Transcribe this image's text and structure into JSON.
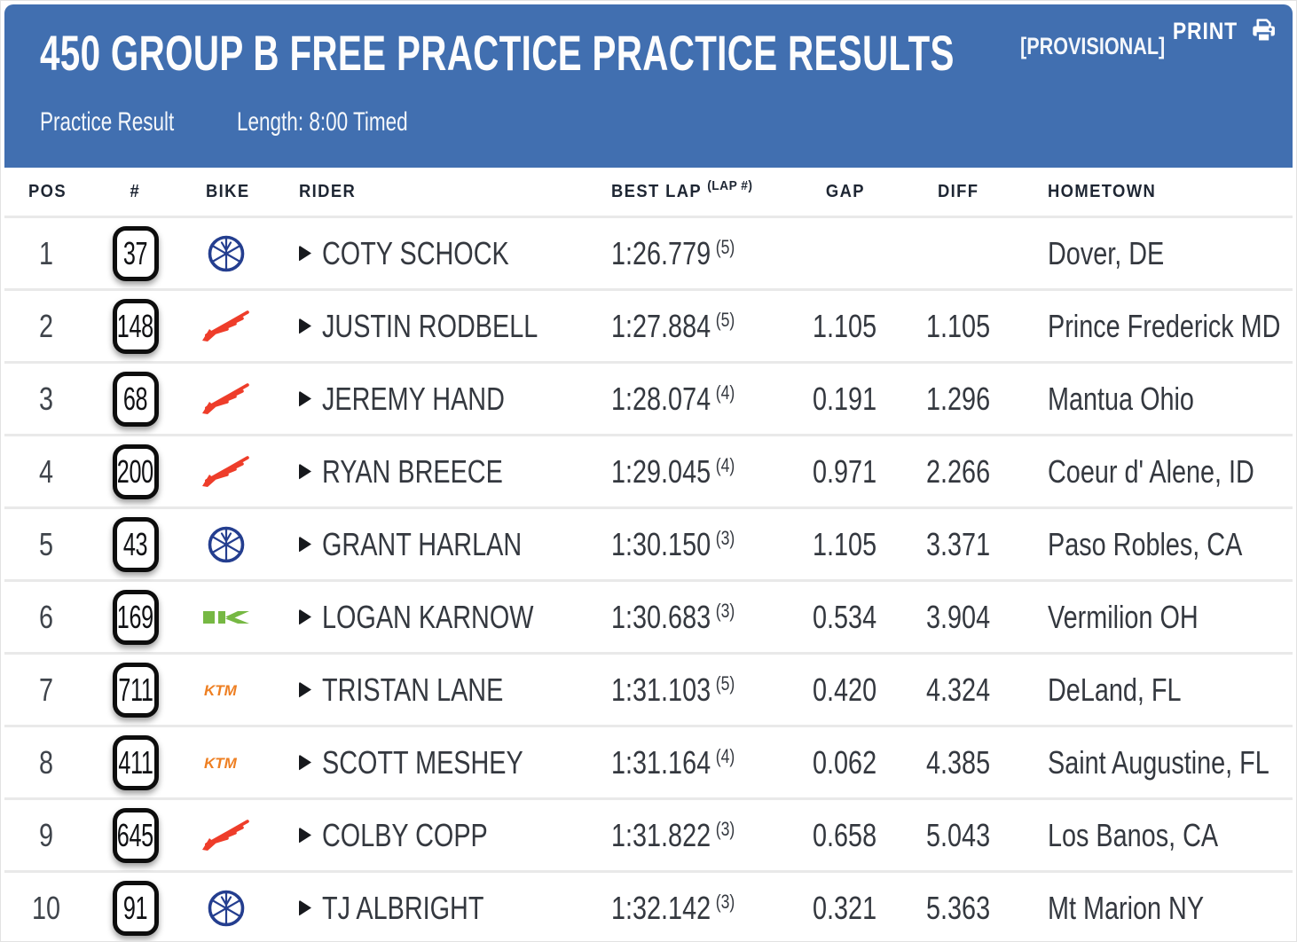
{
  "header": {
    "title": "450 GROUP B FREE PRACTICE PRACTICE RESULTS",
    "provisional": "[PROVISIONAL]",
    "print_label": "PRINT",
    "subtitle_left": "Practice Result",
    "subtitle_right": "Length: 8:00 Timed"
  },
  "table": {
    "columns": {
      "pos": "POS",
      "num": "#",
      "bike": "BIKE",
      "rider": "RIDER",
      "best_lap": "BEST LAP",
      "lap_note": "(LAP #)",
      "gap": "GAP",
      "diff": "DIFF",
      "hometown": "HOMETOWN"
    },
    "rows": [
      {
        "pos": "1",
        "num": "37",
        "bike": "yamaha",
        "rider": "COTY SCHOCK",
        "best_lap": "1:26.779",
        "lap_no": "(5)",
        "gap": "",
        "diff": "",
        "hometown": "Dover, DE"
      },
      {
        "pos": "2",
        "num": "148",
        "bike": "honda",
        "rider": "JUSTIN RODBELL",
        "best_lap": "1:27.884",
        "lap_no": "(5)",
        "gap": "1.105",
        "diff": "1.105",
        "hometown": "Prince Frederick MD"
      },
      {
        "pos": "3",
        "num": "68",
        "bike": "honda",
        "rider": "JEREMY HAND",
        "best_lap": "1:28.074",
        "lap_no": "(4)",
        "gap": "0.191",
        "diff": "1.296",
        "hometown": "Mantua Ohio"
      },
      {
        "pos": "4",
        "num": "200",
        "bike": "honda",
        "rider": "RYAN BREECE",
        "best_lap": "1:29.045",
        "lap_no": "(4)",
        "gap": "0.971",
        "diff": "2.266",
        "hometown": "Coeur d' Alene, ID"
      },
      {
        "pos": "5",
        "num": "43",
        "bike": "yamaha",
        "rider": "GRANT HARLAN",
        "best_lap": "1:30.150",
        "lap_no": "(3)",
        "gap": "1.105",
        "diff": "3.371",
        "hometown": "Paso Robles, CA"
      },
      {
        "pos": "6",
        "num": "169",
        "bike": "kawasaki",
        "rider": "LOGAN KARNOW",
        "best_lap": "1:30.683",
        "lap_no": "(3)",
        "gap": "0.534",
        "diff": "3.904",
        "hometown": "Vermilion OH"
      },
      {
        "pos": "7",
        "num": "711",
        "bike": "ktm",
        "rider": "TRISTAN LANE",
        "best_lap": "1:31.103",
        "lap_no": "(5)",
        "gap": "0.420",
        "diff": "4.324",
        "hometown": "DeLand, FL"
      },
      {
        "pos": "8",
        "num": "411",
        "bike": "ktm",
        "rider": "SCOTT MESHEY",
        "best_lap": "1:31.164",
        "lap_no": "(4)",
        "gap": "0.062",
        "diff": "4.385",
        "hometown": "Saint Augustine, FL"
      },
      {
        "pos": "9",
        "num": "645",
        "bike": "honda",
        "rider": "COLBY COPP",
        "best_lap": "1:31.822",
        "lap_no": "(3)",
        "gap": "0.658",
        "diff": "5.043",
        "hometown": "Los Banos, CA"
      },
      {
        "pos": "10",
        "num": "91",
        "bike": "yamaha",
        "rider": "TJ ALBRIGHT",
        "best_lap": "1:32.142",
        "lap_no": "(3)",
        "gap": "0.321",
        "diff": "5.363",
        "hometown": "Mt Marion NY"
      }
    ]
  },
  "colors": {
    "header_blue": "#416fb0",
    "honda_red": "#ee3d2a",
    "yamaha_blue": "#243e8f",
    "kawasaki_green": "#76b843",
    "ktm_orange": "#ee7f22",
    "row_text": "#34383f",
    "header_text": "#1e2633"
  }
}
